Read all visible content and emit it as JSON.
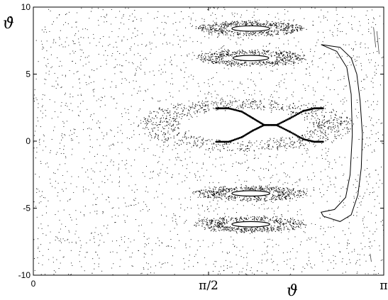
{
  "chart_data": {
    "type": "scatter",
    "title": "",
    "xlabel": "ϑ",
    "ylabel": "ϑ̇",
    "xlim": [
      0,
      3.14159
    ],
    "ylim": [
      -10,
      10
    ],
    "x_ticks": [
      {
        "value": 0,
        "label": "0"
      },
      {
        "value": 1.5708,
        "label": "π/2"
      },
      {
        "value": 3.14159,
        "label": "π"
      }
    ],
    "y_ticks": [
      {
        "value": 10,
        "label": "10"
      },
      {
        "value": 5,
        "label": "5"
      },
      {
        "value": 0,
        "label": "0"
      },
      {
        "value": -5,
        "label": "-5"
      },
      {
        "value": -10,
        "label": "-10"
      }
    ],
    "grid": false,
    "legend": "none",
    "colors": {
      "points": "#000000",
      "axes": "#000000",
      "background": "#ffffff"
    },
    "series": [
      {
        "kind": "chaotic-sea",
        "description_values": {
          "x_range": [
            0,
            3.14159
          ],
          "y_range": [
            -10,
            10
          ],
          "point_count": 2400
        }
      },
      {
        "kind": "resonance-island",
        "center": [
          1.95,
          8.4
        ],
        "half_width": [
          0.17,
          0.2
        ],
        "halo_half_width": [
          0.45,
          0.55
        ]
      },
      {
        "kind": "resonance-island",
        "center": [
          1.95,
          6.2
        ],
        "half_width": [
          0.16,
          0.2
        ],
        "halo_half_width": [
          0.45,
          0.6
        ]
      },
      {
        "kind": "resonance-island",
        "center": [
          1.95,
          -3.9
        ],
        "half_width": [
          0.17,
          0.2
        ],
        "halo_half_width": [
          0.45,
          0.55
        ]
      },
      {
        "kind": "resonance-island",
        "center": [
          1.95,
          -6.2
        ],
        "half_width": [
          0.17,
          0.2
        ],
        "halo_half_width": [
          0.45,
          0.6
        ]
      },
      {
        "kind": "central-island",
        "center": [
          1.9,
          1.2
        ],
        "arc_points": [
          [
            1.64,
            2.45
          ],
          [
            1.75,
            2.45
          ],
          [
            1.87,
            2.2
          ],
          [
            1.97,
            1.7
          ],
          [
            2.07,
            1.2
          ],
          [
            2.18,
            1.2
          ],
          [
            2.3,
            1.7
          ],
          [
            2.42,
            2.25
          ],
          [
            2.52,
            2.45
          ],
          [
            2.6,
            2.45
          ]
        ],
        "arc_points_lower": [
          [
            1.64,
            -0.05
          ],
          [
            1.75,
            -0.05
          ],
          [
            1.87,
            0.3
          ],
          [
            1.97,
            0.8
          ],
          [
            2.07,
            1.2
          ],
          [
            2.18,
            1.2
          ],
          [
            2.3,
            0.7
          ],
          [
            2.42,
            0.15
          ],
          [
            2.52,
            -0.05
          ],
          [
            2.6,
            -0.05
          ]
        ]
      },
      {
        "kind": "large-orbit",
        "points": [
          [
            2.58,
            7.2
          ],
          [
            2.75,
            7.0
          ],
          [
            2.85,
            6.2
          ],
          [
            2.9,
            5.0
          ],
          [
            2.93,
            3.0
          ],
          [
            2.95,
            0.5
          ],
          [
            2.94,
            -2.0
          ],
          [
            2.91,
            -4.0
          ],
          [
            2.85,
            -5.5
          ],
          [
            2.75,
            -6.0
          ],
          [
            2.6,
            -5.6
          ],
          [
            2.58,
            -5.3
          ],
          [
            2.7,
            -5.1
          ],
          [
            2.8,
            -4.2
          ],
          [
            2.84,
            -2.5
          ],
          [
            2.86,
            0.5
          ],
          [
            2.85,
            3.5
          ],
          [
            2.81,
            5.5
          ],
          [
            2.72,
            6.7
          ],
          [
            2.58,
            7.2
          ]
        ]
      },
      {
        "kind": "edge-fragments",
        "segments": [
          [
            [
              3.05,
              8.5
            ],
            [
              3.07,
              7.0
            ]
          ],
          [
            [
              3.08,
              8.2
            ],
            [
              3.1,
              6.5
            ]
          ],
          [
            [
              3.02,
              -8.4
            ],
            [
              3.03,
              -9.0
            ]
          ]
        ]
      }
    ]
  }
}
